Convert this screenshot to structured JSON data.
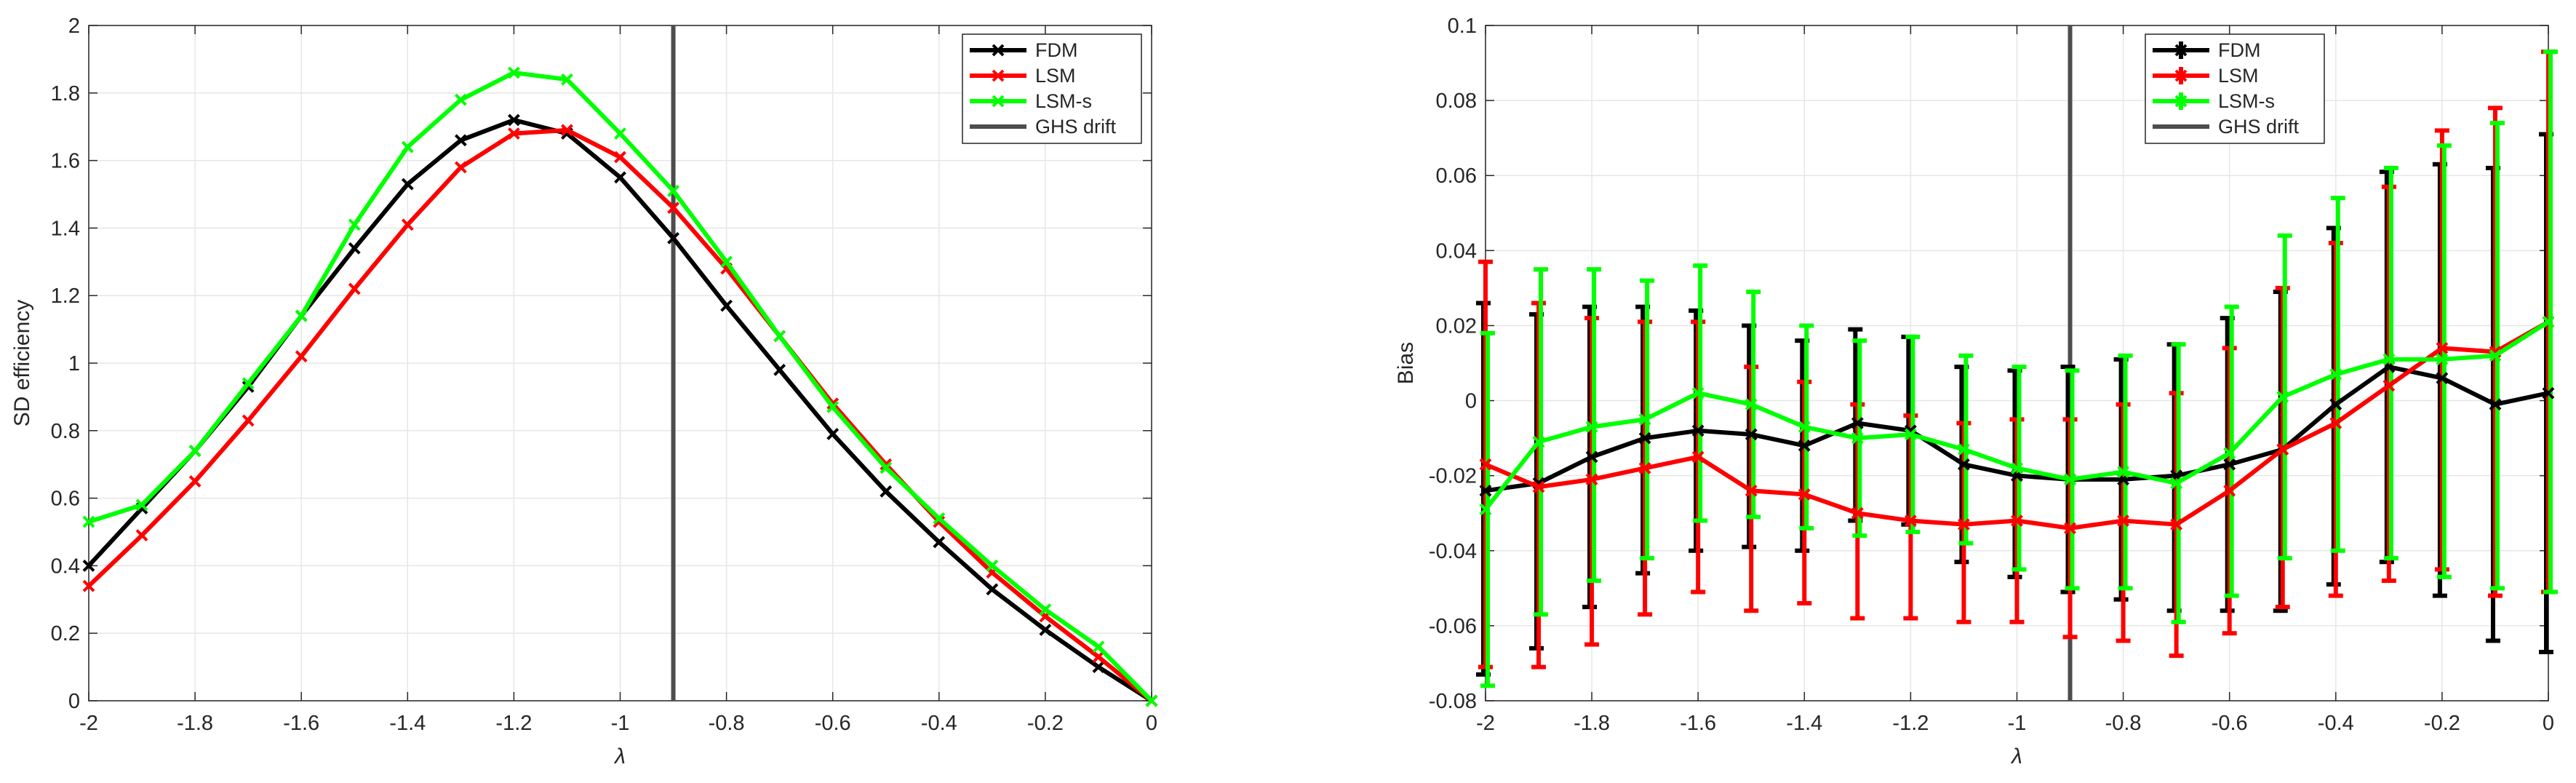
{
  "chart_data": [
    {
      "type": "line",
      "id": "efficiency",
      "title": "",
      "xlabel": "λ",
      "ylabel": "SD efficiency",
      "xlim": [
        -2,
        0
      ],
      "ylim": [
        0,
        2
      ],
      "xticks": [
        -2,
        -1.8,
        -1.6,
        -1.4,
        -1.2,
        -1,
        -0.8,
        -0.6,
        -0.4,
        -0.2,
        0
      ],
      "xtick_labels": [
        "-2",
        "-1.8",
        "-1.6",
        "-1.4",
        "-1.2",
        "-1",
        "-0.8",
        "-0.6",
        "-0.4",
        "-0.2",
        "0"
      ],
      "yticks": [
        0,
        0.2,
        0.4,
        0.6,
        0.8,
        1,
        1.2,
        1.4,
        1.6,
        1.8,
        2
      ],
      "ytick_labels": [
        "0",
        "0.2",
        "0.4",
        "0.6",
        "0.8",
        "1",
        "1.2",
        "1.4",
        "1.6",
        "1.8",
        "2"
      ],
      "grid": true,
      "legend_position": "top-right",
      "x": [
        -2,
        -1.9,
        -1.8,
        -1.7,
        -1.6,
        -1.5,
        -1.4,
        -1.3,
        -1.2,
        -1.1,
        -1,
        -0.9,
        -0.8,
        -0.7,
        -0.6,
        -0.5,
        -0.4,
        -0.3,
        -0.2,
        -0.1,
        0
      ],
      "series": [
        {
          "name": "FDM",
          "color": "#000000",
          "marker": "x",
          "values": [
            0.4,
            0.57,
            0.74,
            0.93,
            1.14,
            1.34,
            1.53,
            1.66,
            1.72,
            1.68,
            1.55,
            1.37,
            1.17,
            0.98,
            0.79,
            0.62,
            0.47,
            0.33,
            0.21,
            0.1,
            0.0
          ]
        },
        {
          "name": "LSM",
          "color": "#ff0000",
          "marker": "x",
          "values": [
            0.34,
            0.49,
            0.65,
            0.83,
            1.02,
            1.22,
            1.41,
            1.58,
            1.68,
            1.69,
            1.61,
            1.46,
            1.28,
            1.08,
            0.88,
            0.7,
            0.53,
            0.38,
            0.25,
            0.13,
            0.0
          ]
        },
        {
          "name": "LSM-s",
          "color": "#00ff00",
          "marker": "x",
          "values": [
            0.53,
            0.58,
            0.74,
            0.94,
            1.14,
            1.41,
            1.64,
            1.78,
            1.86,
            1.84,
            1.68,
            1.51,
            1.3,
            1.08,
            0.87,
            0.69,
            0.54,
            0.4,
            0.27,
            0.16,
            0.0
          ]
        }
      ],
      "vlines": [
        {
          "name": "GHS drift",
          "color": "#4d4d4d",
          "x": -0.9
        }
      ]
    },
    {
      "type": "line",
      "id": "bias",
      "title": "",
      "xlabel": "λ",
      "ylabel": "Bias",
      "xlim": [
        -2,
        0
      ],
      "ylim": [
        -0.08,
        0.1
      ],
      "xticks": [
        -2,
        -1.8,
        -1.6,
        -1.4,
        -1.2,
        -1,
        -0.8,
        -0.6,
        -0.4,
        -0.2,
        0
      ],
      "xtick_labels": [
        "-2",
        "-1.8",
        "-1.6",
        "-1.4",
        "-1.2",
        "-1",
        "-0.8",
        "-0.6",
        "-0.4",
        "-0.2",
        "0"
      ],
      "yticks": [
        -0.08,
        -0.06,
        -0.04,
        -0.02,
        0,
        0.02,
        0.04,
        0.06,
        0.08,
        0.1
      ],
      "ytick_labels": [
        "-0.08",
        "-0.06",
        "-0.04",
        "-0.02",
        "0",
        "0.02",
        "0.04",
        "0.06",
        "0.08",
        "0.1"
      ],
      "grid": true,
      "legend_position": "top-center",
      "x": [
        -2,
        -1.9,
        -1.8,
        -1.7,
        -1.6,
        -1.5,
        -1.4,
        -1.3,
        -1.2,
        -1.1,
        -1,
        -0.9,
        -0.8,
        -0.7,
        -0.6,
        -0.5,
        -0.4,
        -0.3,
        -0.2,
        -0.1,
        0
      ],
      "series": [
        {
          "name": "FDM",
          "color": "#000000",
          "marker": "x",
          "errorbars": true,
          "values": [
            -0.024,
            -0.022,
            -0.015,
            -0.01,
            -0.008,
            -0.009,
            -0.012,
            -0.006,
            -0.008,
            -0.017,
            -0.02,
            -0.021,
            -0.021,
            -0.02,
            -0.017,
            -0.013,
            -0.001,
            0.009,
            0.006,
            -0.001,
            0.002
          ],
          "lower": [
            -0.073,
            -0.066,
            -0.055,
            -0.046,
            -0.04,
            -0.039,
            -0.04,
            -0.032,
            -0.033,
            -0.043,
            -0.047,
            -0.051,
            -0.053,
            -0.056,
            -0.056,
            -0.056,
            -0.049,
            -0.043,
            -0.052,
            -0.064,
            -0.067
          ],
          "upper": [
            0.026,
            0.023,
            0.025,
            0.025,
            0.024,
            0.02,
            0.016,
            0.019,
            0.017,
            0.009,
            0.008,
            0.009,
            0.011,
            0.015,
            0.022,
            0.029,
            0.046,
            0.061,
            0.063,
            0.062,
            0.071
          ]
        },
        {
          "name": "LSM",
          "color": "#ff0000",
          "marker": "x",
          "errorbars": true,
          "values": [
            -0.017,
            -0.023,
            -0.021,
            -0.018,
            -0.015,
            -0.024,
            -0.025,
            -0.03,
            -0.032,
            -0.033,
            -0.032,
            -0.034,
            -0.032,
            -0.033,
            -0.024,
            -0.013,
            -0.006,
            0.004,
            0.014,
            0.013,
            0.021
          ],
          "lower": [
            -0.071,
            -0.071,
            -0.065,
            -0.057,
            -0.051,
            -0.056,
            -0.054,
            -0.058,
            -0.058,
            -0.059,
            -0.059,
            -0.063,
            -0.064,
            -0.068,
            -0.062,
            -0.055,
            -0.052,
            -0.048,
            -0.045,
            -0.052,
            -0.051
          ],
          "upper": [
            0.037,
            0.026,
            0.022,
            0.021,
            0.021,
            0.009,
            0.005,
            -0.001,
            -0.004,
            -0.006,
            -0.005,
            -0.005,
            -0.001,
            0.002,
            0.014,
            0.03,
            0.042,
            0.057,
            0.072,
            0.078,
            0.093
          ]
        },
        {
          "name": "LSM-s",
          "color": "#00ff00",
          "marker": "x",
          "errorbars": true,
          "values": [
            -0.029,
            -0.011,
            -0.007,
            -0.005,
            0.002,
            -0.001,
            -0.007,
            -0.01,
            -0.009,
            -0.013,
            -0.018,
            -0.021,
            -0.019,
            -0.022,
            -0.014,
            0.001,
            0.007,
            0.011,
            0.011,
            0.012,
            0.021
          ],
          "lower": [
            -0.076,
            -0.057,
            -0.048,
            -0.042,
            -0.032,
            -0.031,
            -0.034,
            -0.036,
            -0.035,
            -0.038,
            -0.045,
            -0.05,
            -0.05,
            -0.059,
            -0.052,
            -0.042,
            -0.04,
            -0.042,
            -0.047,
            -0.05,
            -0.051
          ],
          "upper": [
            0.018,
            0.035,
            0.035,
            0.032,
            0.036,
            0.029,
            0.02,
            0.016,
            0.017,
            0.012,
            0.009,
            0.008,
            0.012,
            0.015,
            0.025,
            0.044,
            0.054,
            0.062,
            0.068,
            0.074,
            0.093
          ]
        }
      ],
      "vlines": [
        {
          "name": "GHS drift",
          "color": "#4d4d4d",
          "x": -0.9
        }
      ]
    }
  ]
}
